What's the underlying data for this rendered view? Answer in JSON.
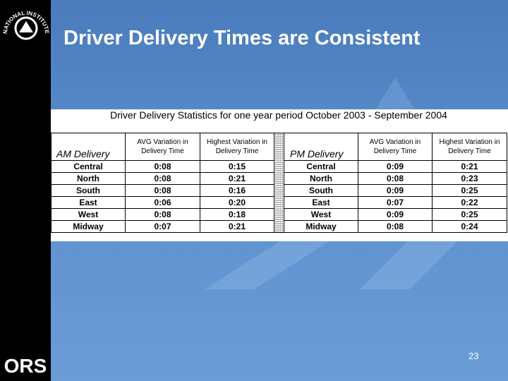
{
  "logo": {
    "arc_text": "NATIONAL INSTITUTES OF HEALTH",
    "org": "ORS"
  },
  "header": {
    "title": "Driver Delivery Times are Consistent"
  },
  "table": {
    "title": "Driver Delivery Statistics for one year period October 2003 - September 2004",
    "headers": [
      [
        "AM Delivery"
      ],
      [
        "AVG Variation in",
        "Delivery Time"
      ],
      [
        "Highest Variation in",
        "Delivery Time"
      ],
      [
        "PM Delivery"
      ],
      [
        "AVG Variation in",
        "Delivery Time"
      ],
      [
        "Highest Variation in",
        "Delivery Time"
      ]
    ],
    "rows": [
      [
        "Central",
        "0:08",
        "0:15",
        "Central",
        "0:09",
        "0:21"
      ],
      [
        "North",
        "0:08",
        "0:21",
        "North",
        "0:08",
        "0:23"
      ],
      [
        "South",
        "0:08",
        "0:16",
        "South",
        "0:09",
        "0:25"
      ],
      [
        "East",
        "0:06",
        "0:20",
        "East",
        "0:07",
        "0:22"
      ],
      [
        "West",
        "0:08",
        "0:18",
        "West",
        "0:09",
        "0:25"
      ],
      [
        "Midway",
        "0:07",
        "0:21",
        "Midway",
        "0:08",
        "0:24"
      ]
    ]
  },
  "footer": {
    "page_number": "23"
  }
}
